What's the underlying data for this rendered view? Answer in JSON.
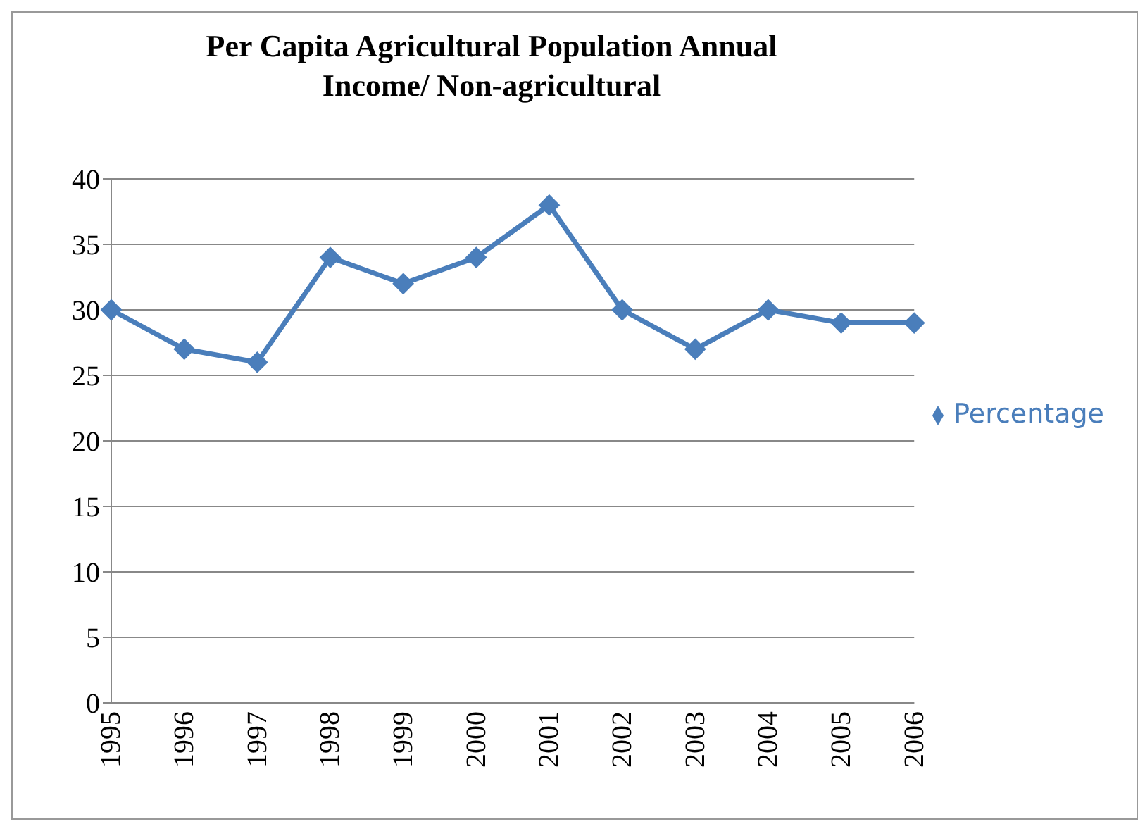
{
  "chart_data": {
    "type": "line",
    "title": "Per Capita Agricultural Population Annual Income/ Non-agricultural",
    "categories": [
      "1995",
      "1996",
      "1997",
      "1998",
      "1999",
      "2000",
      "2001",
      "2002",
      "2003",
      "2004",
      "2005",
      "2006"
    ],
    "series": [
      {
        "name": "Percentage",
        "color": "#4a7ebb",
        "values": [
          30,
          27,
          26,
          34,
          32,
          34,
          38,
          30,
          27,
          30,
          29,
          29
        ]
      }
    ],
    "ylim": [
      0,
      40
    ],
    "yticks": [
      0,
      5,
      10,
      15,
      20,
      25,
      30,
      35,
      40
    ],
    "grid": "y",
    "legend": "right",
    "marker": "diamond",
    "line_style": "solid"
  }
}
